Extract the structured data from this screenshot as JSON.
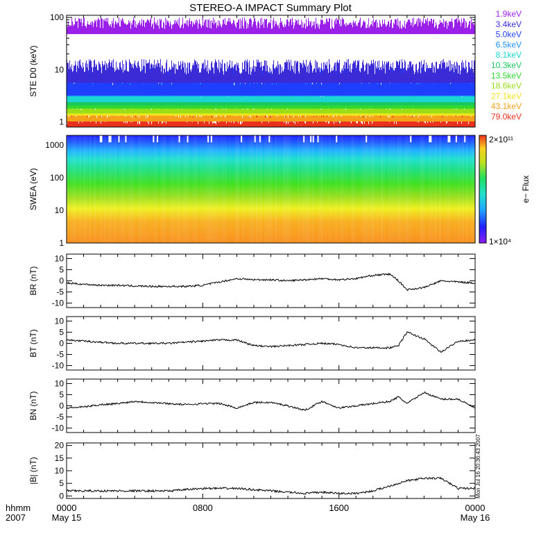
{
  "title": "STEREO-A IMPACT Summary Plot",
  "stamp": "Mon Jul 16 20:36:43 2007",
  "time_axis": {
    "corner_labels": [
      "hhmm",
      "2007"
    ],
    "ticks": [
      {
        "hour": 0,
        "label": "0000",
        "sub": "May 15"
      },
      {
        "hour": 8,
        "label": "0800",
        "sub": ""
      },
      {
        "hour": 16,
        "label": "1600",
        "sub": ""
      },
      {
        "hour": 24,
        "label": "0000",
        "sub": "May 16"
      }
    ],
    "range_hours": [
      0,
      24
    ]
  },
  "chart_data": [
    {
      "id": "ste",
      "type": "line",
      "ylabel": "STE D0 (keV)",
      "yscale": "log",
      "ylim": [
        0.8,
        110
      ],
      "ytick_labels": [
        "1",
        "10",
        "100"
      ],
      "ytick_values": [
        1,
        10,
        100
      ],
      "legend_placement": "right",
      "series": [
        {
          "name": "1.9keV",
          "color": "#9a1fe8",
          "level": 80,
          "spread": 20
        },
        {
          "name": "3.4keV",
          "color": "#3b2bd6",
          "level": 12,
          "spread": 4
        },
        {
          "name": "5.0keV",
          "color": "#1f3fff",
          "level": 8,
          "spread": 3
        },
        {
          "name": "6.5keV",
          "color": "#1e90ff",
          "level": 5.5,
          "spread": 1.5
        },
        {
          "name": "8.1keV",
          "color": "#19d6d0",
          "level": 4,
          "spread": 1
        },
        {
          "name": "10.3keV",
          "color": "#19c95f",
          "level": 3.2,
          "spread": 0.7
        },
        {
          "name": "13.5keV",
          "color": "#2fd92f",
          "level": 2.6,
          "spread": 0.5
        },
        {
          "name": "18.6keV",
          "color": "#9ade1a",
          "level": 2.1,
          "spread": 0.4
        },
        {
          "name": "27.1keV",
          "color": "#f0e61e",
          "level": 1.8,
          "spread": 0.3
        },
        {
          "name": "43.1keV",
          "color": "#f5a21a",
          "level": 1.5,
          "spread": 0.3
        },
        {
          "name": "79.0keV",
          "color": "#e8321e",
          "level": 1.2,
          "spread": 0.3
        }
      ]
    },
    {
      "id": "swea",
      "type": "heatmap",
      "ylabel": "SWEA (eV)",
      "yscale": "log",
      "ylim": [
        1,
        2000
      ],
      "ytick_labels": [
        "1",
        "10",
        "100",
        "1000"
      ],
      "ytick_values": [
        1,
        10,
        100,
        1000
      ],
      "colorbar": {
        "label": "e− Flux",
        "min_label": "1×10⁴",
        "max_label": "2×10¹¹"
      }
    },
    {
      "id": "br",
      "type": "line",
      "ylabel": "BR (nT)",
      "ylim": [
        -12,
        12
      ],
      "ytick_labels": [
        "10",
        "5",
        "0",
        "-5",
        "-10"
      ],
      "ytick_values": [
        10,
        5,
        0,
        -5,
        -10
      ],
      "series": [
        {
          "x_hours": [
            0,
            1,
            2,
            3,
            4,
            5,
            6,
            7,
            8,
            9,
            10,
            11,
            12,
            13,
            14,
            15,
            16,
            17,
            18,
            19,
            19.5,
            20,
            21,
            22,
            23,
            24
          ],
          "values": [
            -1,
            -1.5,
            -2,
            -2,
            -2.3,
            -2.5,
            -2.5,
            -2.5,
            -2,
            -0.5,
            1,
            0.5,
            0.5,
            0,
            0.5,
            1,
            0.5,
            1,
            2.5,
            3,
            0,
            -4,
            -3,
            0,
            -0.5,
            -1
          ]
        }
      ]
    },
    {
      "id": "bt",
      "type": "line",
      "ylabel": "BT (nT)",
      "ylim": [
        -12,
        12
      ],
      "ytick_labels": [
        "10",
        "5",
        "0",
        "-5",
        "-10"
      ],
      "ytick_values": [
        10,
        5,
        0,
        -5,
        -10
      ],
      "series": [
        {
          "x_hours": [
            0,
            1,
            2,
            3,
            4,
            5,
            6,
            7,
            8,
            9,
            10,
            11,
            12,
            13,
            14,
            15,
            16,
            17,
            18,
            19,
            19.5,
            20,
            21,
            22,
            23,
            24
          ],
          "values": [
            1.5,
            1,
            0.5,
            0,
            0,
            0,
            0,
            0.5,
            1,
            1.5,
            1.5,
            -1,
            -1.5,
            -1,
            -0.5,
            0,
            -0.5,
            -2,
            -2,
            -2,
            -1,
            5,
            2,
            -4,
            1,
            1.5
          ]
        }
      ]
    },
    {
      "id": "bn",
      "type": "line",
      "ylabel": "BN (nT)",
      "ylim": [
        -12,
        12
      ],
      "ytick_labels": [
        "10",
        "5",
        "0",
        "-5",
        "-10"
      ],
      "ytick_values": [
        10,
        5,
        0,
        -5,
        -10
      ],
      "series": [
        {
          "x_hours": [
            0,
            1,
            2,
            3,
            4,
            5,
            6,
            7,
            8,
            9,
            10,
            11,
            12,
            13,
            14,
            15,
            16,
            17,
            18,
            19,
            19.5,
            20,
            21,
            22,
            23,
            24
          ],
          "values": [
            -1,
            -0.5,
            0.5,
            1,
            2,
            1.5,
            1,
            0.5,
            1,
            1,
            -1,
            1.5,
            1.5,
            0,
            -2,
            2,
            -1,
            0,
            1,
            2,
            4,
            1,
            6,
            3,
            3,
            -1
          ]
        }
      ]
    },
    {
      "id": "bmag",
      "type": "line",
      "ylabel": "|B| (nT)",
      "ylim": [
        -1,
        21
      ],
      "ytick_labels": [
        "20",
        "15",
        "10",
        "5",
        "0"
      ],
      "ytick_values": [
        20,
        15,
        10,
        5,
        0
      ],
      "series": [
        {
          "x_hours": [
            0,
            1,
            2,
            3,
            4,
            5,
            6,
            7,
            8,
            9,
            10,
            11,
            12,
            13,
            14,
            15,
            16,
            17,
            18,
            19,
            19.5,
            20,
            21,
            22,
            23,
            24
          ],
          "values": [
            2,
            2,
            2,
            2,
            2,
            2,
            2,
            2.5,
            3,
            3,
            3,
            2.5,
            2,
            1.5,
            1,
            1.5,
            1,
            1,
            2,
            4,
            5,
            6,
            7,
            7,
            3,
            3
          ]
        }
      ]
    }
  ]
}
